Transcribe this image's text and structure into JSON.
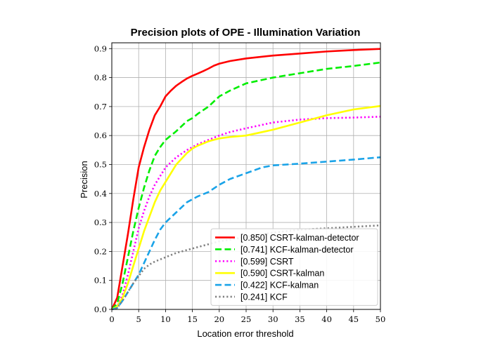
{
  "chart_data": {
    "type": "line",
    "title": "Precision plots of OPE - Illumination Variation",
    "xlabel": "Location error threshold",
    "ylabel": "Precision",
    "xlim": [
      0,
      50
    ],
    "ylim": [
      0,
      0.92
    ],
    "x_ticks": [
      0,
      5,
      10,
      15,
      20,
      25,
      30,
      35,
      40,
      45,
      50
    ],
    "y_ticks": [
      0.0,
      0.1,
      0.2,
      0.3,
      0.4,
      0.5,
      0.6,
      0.7,
      0.8,
      0.9
    ],
    "x_tick_labels": [
      "0",
      "5",
      "10",
      "15",
      "20",
      "25",
      "30",
      "35",
      "40",
      "45",
      "50"
    ],
    "y_tick_labels": [
      "0.0",
      "0.1",
      "0.2",
      "0.3",
      "0.4",
      "0.5",
      "0.6",
      "0.7",
      "0.8",
      "0.9"
    ],
    "grid": true,
    "legend_position": "bottom-right",
    "series": [
      {
        "name": "[0.850] CSRT-kalman-detector",
        "color": "#ff0000",
        "style": "solid",
        "x": [
          0,
          1,
          2,
          3,
          4,
          5,
          6,
          7,
          8,
          9,
          10,
          11,
          12,
          13,
          14,
          15,
          16,
          17,
          18,
          19,
          20,
          22,
          25,
          30,
          35,
          40,
          45,
          50
        ],
        "values": [
          0.0,
          0.04,
          0.15,
          0.26,
          0.38,
          0.49,
          0.56,
          0.62,
          0.67,
          0.7,
          0.735,
          0.755,
          0.772,
          0.785,
          0.797,
          0.806,
          0.814,
          0.822,
          0.831,
          0.841,
          0.848,
          0.857,
          0.866,
          0.876,
          0.883,
          0.89,
          0.895,
          0.899
        ]
      },
      {
        "name": "[0.741] KCF-kalman-detector",
        "color": "#00ee00",
        "style": "dashed",
        "x": [
          0,
          1,
          2,
          3,
          4,
          5,
          6,
          7,
          8,
          9,
          10,
          12,
          14,
          15,
          16,
          18,
          20,
          22,
          25,
          30,
          35,
          40,
          45,
          50
        ],
        "values": [
          0.0,
          0.02,
          0.09,
          0.18,
          0.27,
          0.35,
          0.42,
          0.48,
          0.53,
          0.56,
          0.585,
          0.615,
          0.65,
          0.66,
          0.675,
          0.7,
          0.735,
          0.755,
          0.78,
          0.8,
          0.815,
          0.83,
          0.84,
          0.852
        ]
      },
      {
        "name": "[0.599] CSRT",
        "color": "#ff00ff",
        "style": "dotted",
        "x": [
          0,
          1,
          2,
          3,
          4,
          5,
          6,
          7,
          8,
          9,
          10,
          12,
          14,
          15,
          16,
          18,
          20,
          22,
          25,
          30,
          35,
          40,
          45,
          50
        ],
        "values": [
          0.0,
          0.01,
          0.05,
          0.12,
          0.2,
          0.28,
          0.34,
          0.39,
          0.43,
          0.46,
          0.49,
          0.525,
          0.55,
          0.56,
          0.57,
          0.585,
          0.6,
          0.612,
          0.625,
          0.645,
          0.655,
          0.66,
          0.662,
          0.665
        ]
      },
      {
        "name": "[0.590] CSRT-kalman",
        "color": "#ffff00",
        "style": "solid",
        "x": [
          0,
          1,
          2,
          3,
          4,
          5,
          6,
          7,
          8,
          9,
          10,
          12,
          14,
          15,
          16,
          18,
          20,
          22,
          25,
          30,
          35,
          40,
          45,
          50
        ],
        "values": [
          0.0,
          0.01,
          0.04,
          0.09,
          0.15,
          0.21,
          0.27,
          0.32,
          0.37,
          0.41,
          0.44,
          0.5,
          0.54,
          0.555,
          0.565,
          0.58,
          0.59,
          0.595,
          0.6,
          0.62,
          0.645,
          0.67,
          0.69,
          0.702
        ]
      },
      {
        "name": "[0.422] KCF-kalman",
        "color": "#1aa3e8",
        "style": "dashed",
        "x": [
          0,
          1,
          2,
          3,
          4,
          5,
          6,
          7,
          8,
          9,
          10,
          12,
          14,
          15,
          16,
          18,
          20,
          22,
          25,
          28,
          30,
          35,
          40,
          45,
          50
        ],
        "values": [
          0.0,
          0.005,
          0.03,
          0.06,
          0.09,
          0.12,
          0.16,
          0.2,
          0.24,
          0.275,
          0.3,
          0.335,
          0.37,
          0.38,
          0.39,
          0.405,
          0.43,
          0.45,
          0.47,
          0.49,
          0.497,
          0.503,
          0.51,
          0.517,
          0.525
        ]
      },
      {
        "name": "[0.241] KCF",
        "color": "#808080",
        "style": "dotted",
        "x": [
          0,
          1,
          2,
          3,
          4,
          5,
          6,
          7,
          8,
          10,
          12,
          15,
          18,
          20,
          25,
          30,
          35,
          40,
          45,
          50
        ],
        "values": [
          0.0,
          0.005,
          0.03,
          0.06,
          0.09,
          0.115,
          0.14,
          0.155,
          0.165,
          0.18,
          0.195,
          0.21,
          0.225,
          0.235,
          0.25,
          0.265,
          0.275,
          0.28,
          0.285,
          0.29
        ]
      }
    ]
  }
}
